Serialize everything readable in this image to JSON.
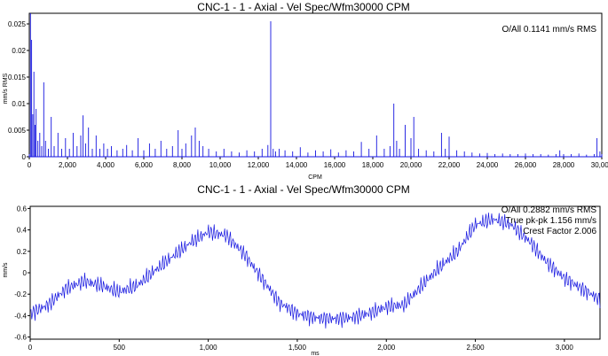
{
  "charts": [
    {
      "title": "CNC-1 - 1 - Axial - Vel Spec/Wfm30000 CPM",
      "ylabel": "mm/s RMS",
      "xlabel": "CPM",
      "annotations": [
        "O/All 0.1141 mm/s RMS"
      ],
      "color": "#1515e0"
    },
    {
      "title": "CNC-1 - 1 - Axial - Vel Spec/Wfm30000 CPM",
      "ylabel": "mm/s",
      "xlabel": "ms",
      "annotations": [
        "O/All 0.2882 mm/s RMS",
        "True pk-pk 1.156 mm/s",
        "Crest Factor 2.006"
      ],
      "color": "#1515e0"
    }
  ],
  "chart_data": [
    {
      "type": "line",
      "title": "CNC-1 - 1 - Axial - Vel Spec/Wfm30000 CPM",
      "xlabel": "CPM",
      "ylabel": "mm/s RMS",
      "xlim": [
        0,
        30000
      ],
      "ylim": [
        0,
        0.027
      ],
      "x_ticks": [
        "0",
        "2,000",
        "4,000",
        "6,000",
        "8,000",
        "10,000",
        "12,000",
        "14,000",
        "16,000",
        "18,000",
        "20,000",
        "22,000",
        "24,000",
        "26,000",
        "28,000",
        "30,000"
      ],
      "y_ticks": [
        "0",
        "0.005",
        "0.01",
        "0.015",
        "0.02",
        "0.025"
      ],
      "grid": false,
      "series": [
        {
          "x": [
            0,
            60,
            120,
            180,
            240,
            300,
            360,
            450,
            550,
            650,
            760,
            850,
            1000,
            1150,
            1300,
            1500,
            1700,
            1900,
            2100,
            2300,
            2500,
            2700,
            2820,
            2950,
            3100,
            3300,
            3500,
            3700,
            3900,
            4100,
            4300,
            4600,
            4900,
            5100,
            5400,
            5700,
            6000,
            6300,
            6600,
            6900,
            7200,
            7500,
            7800,
            8000,
            8200,
            8500,
            8700,
            8900,
            9100,
            9400,
            9800,
            10200,
            10600,
            11000,
            11400,
            11800,
            12200,
            12500,
            12650,
            12780,
            12900,
            13100,
            13400,
            13800,
            14200,
            14600,
            15000,
            15400,
            15800,
            16200,
            16600,
            17000,
            17400,
            17800,
            18200,
            18600,
            18900,
            19100,
            19250,
            19400,
            19700,
            20000,
            20150,
            20400,
            20800,
            21200,
            21600,
            21800,
            22000,
            22400,
            22800,
            23200,
            23600,
            24000,
            24400,
            24800,
            25200,
            25600,
            26000,
            26400,
            26800,
            27200,
            27600,
            27800,
            28000,
            28400,
            28800,
            29200,
            29600,
            29750,
            29900,
            30000
          ],
          "y": [
            0.0005,
            0.027,
            0.022,
            0.008,
            0.016,
            0.006,
            0.009,
            0.003,
            0.0045,
            0.002,
            0.014,
            0.003,
            0.0015,
            0.0075,
            0.002,
            0.0045,
            0.0015,
            0.0035,
            0.0015,
            0.0045,
            0.002,
            0.004,
            0.0078,
            0.0025,
            0.0055,
            0.0015,
            0.004,
            0.0015,
            0.0025,
            0.0015,
            0.002,
            0.0012,
            0.0015,
            0.0022,
            0.0012,
            0.0035,
            0.0012,
            0.0025,
            0.0015,
            0.003,
            0.0015,
            0.002,
            0.005,
            0.0015,
            0.0025,
            0.004,
            0.0055,
            0.003,
            0.002,
            0.0015,
            0.001,
            0.0015,
            0.001,
            0.0008,
            0.0012,
            0.001,
            0.0015,
            0.0022,
            0.0255,
            0.0015,
            0.001,
            0.0015,
            0.0012,
            0.001,
            0.0018,
            0.0008,
            0.0012,
            0.001,
            0.0014,
            0.0008,
            0.0012,
            0.001,
            0.0028,
            0.0015,
            0.004,
            0.0015,
            0.002,
            0.01,
            0.003,
            0.0015,
            0.006,
            0.0035,
            0.0075,
            0.0015,
            0.0012,
            0.001,
            0.0045,
            0.0015,
            0.0038,
            0.0012,
            0.001,
            0.0008,
            0.0006,
            0.0007,
            0.0005,
            0.0006,
            0.0005,
            0.0005,
            0.0006,
            0.0005,
            0.0005,
            0.0004,
            0.0005,
            0.0012,
            0.0005,
            0.0005,
            0.0006,
            0.0004,
            0.0005,
            0.0035,
            0.001,
            0.0005
          ]
        }
      ]
    },
    {
      "type": "line",
      "title": "CNC-1 - 1 - Axial - Vel Spec/Wfm30000 CPM",
      "xlabel": "ms",
      "ylabel": "mm/s",
      "xlim": [
        0,
        3200
      ],
      "ylim": [
        -0.62,
        0.62
      ],
      "x_ticks": [
        "0",
        "500",
        "1,000",
        "1,500",
        "2,000",
        "2,500",
        "3,000"
      ],
      "y_ticks": [
        "-0.6",
        "-0.4",
        "-0.2",
        "0",
        "0.2",
        "0.4",
        "0.6"
      ],
      "grid": false,
      "series": [
        {
          "x": [
            0,
            100,
            200,
            300,
            400,
            500,
            600,
            700,
            800,
            900,
            1000,
            1100,
            1200,
            1300,
            1400,
            1500,
            1600,
            1700,
            1800,
            1900,
            2000,
            2100,
            2200,
            2300,
            2400,
            2500,
            2600,
            2700,
            2800,
            2900,
            3000,
            3100,
            3200
          ],
          "y": [
            -0.38,
            -0.3,
            -0.15,
            -0.08,
            -0.12,
            -0.18,
            -0.12,
            0.02,
            0.15,
            0.28,
            0.38,
            0.35,
            0.18,
            -0.05,
            -0.28,
            -0.38,
            -0.42,
            -0.43,
            -0.42,
            -0.38,
            -0.32,
            -0.3,
            -0.12,
            0.05,
            0.2,
            0.45,
            0.5,
            0.45,
            0.3,
            0.1,
            -0.05,
            -0.15,
            -0.25
          ]
        }
      ]
    }
  ]
}
